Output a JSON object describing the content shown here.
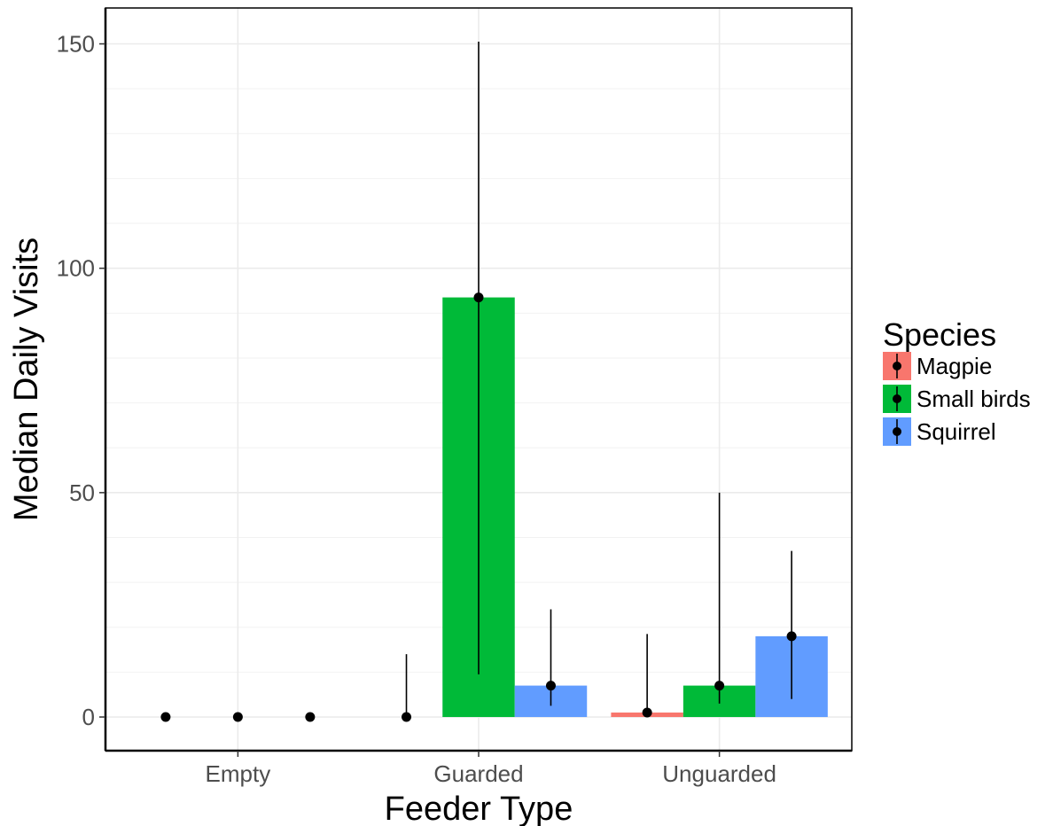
{
  "chart_data": {
    "type": "bar",
    "xlabel": "Feeder Type",
    "ylabel": "Median Daily Visits",
    "categories": [
      "Empty",
      "Guarded",
      "Unguarded"
    ],
    "ylim": [
      -7.5,
      158
    ],
    "yticks": [
      0,
      50,
      100,
      150
    ],
    "grid": true,
    "legend": {
      "title": "Species",
      "position": "right"
    },
    "series": [
      {
        "name": "Magpie",
        "color": "#F8766D",
        "values": [
          0,
          0,
          1
        ],
        "err_low": [
          0,
          0,
          0
        ],
        "err_high": [
          0,
          14,
          18.5
        ]
      },
      {
        "name": "Small birds",
        "color": "#00BA38",
        "values": [
          0,
          93.5,
          7
        ],
        "err_low": [
          0,
          9.5,
          3
        ],
        "err_high": [
          0,
          150.5,
          50
        ]
      },
      {
        "name": "Squirrel",
        "color": "#619CFF",
        "values": [
          0,
          7,
          18
        ],
        "err_low": [
          0,
          2.5,
          4
        ],
        "err_high": [
          0,
          24,
          37
        ]
      }
    ]
  }
}
